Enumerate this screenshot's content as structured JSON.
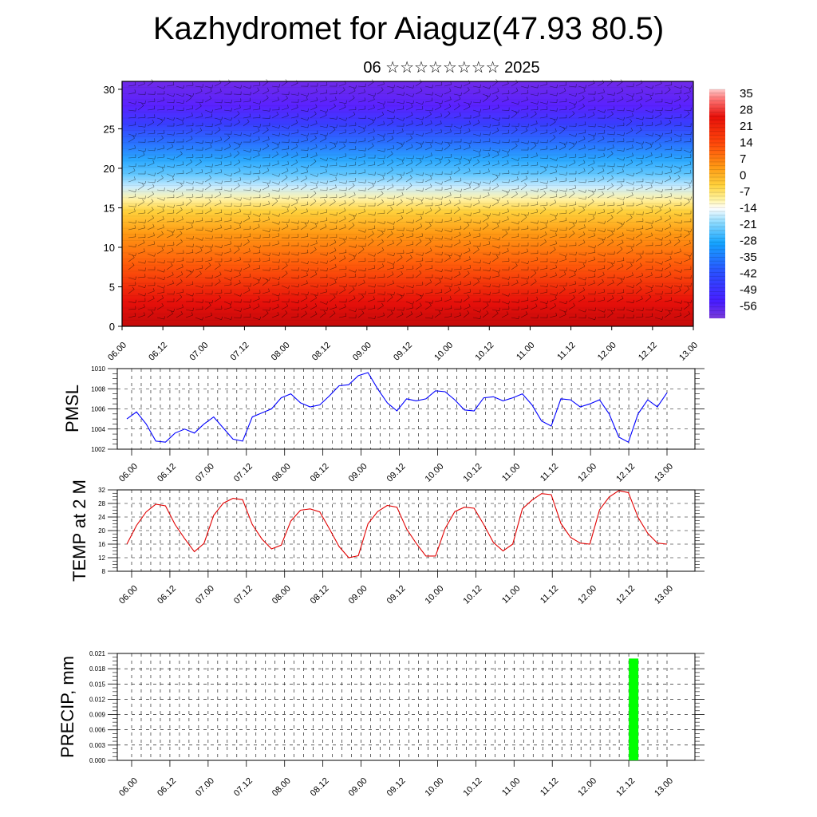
{
  "header": {
    "title": "Kazhydromet for Aiaguz(47.93 80.5)",
    "subtitle": "06 ☆☆☆☆☆☆☆☆ 2025"
  },
  "chart_data": [
    {
      "type": "heatmap",
      "title": "",
      "y_ticks": [
        "0",
        "5",
        "10",
        "15",
        "20",
        "25",
        "30"
      ],
      "ylim": [
        0,
        31
      ],
      "x_ticks": [
        "06.00",
        "06.12",
        "07.00",
        "07.12",
        "08.00",
        "08.12",
        "09.00",
        "09.12",
        "10.00",
        "10.12",
        "11.00",
        "11.12",
        "12.00",
        "12.12",
        "13.00"
      ],
      "colorbar_labels": [
        "35",
        "28",
        "21",
        "14",
        "7",
        "0",
        "-7",
        "-14",
        "-21",
        "-28",
        "-35",
        "-42",
        "-49",
        "-56"
      ],
      "overlay": "wind barbs",
      "colors": {
        "warm": "#e8100a",
        "mid": "#ffd23c",
        "cool": "#2aa8ff",
        "cold": "#4a1cff"
      }
    },
    {
      "type": "line",
      "ylabel": "PMSL",
      "ylim": [
        1002,
        1010
      ],
      "y_ticks": [
        "1002",
        "1004",
        "1006",
        "1008",
        "1010"
      ],
      "x_ticks": [
        "06.00",
        "06.12",
        "07.00",
        "07.12",
        "08.00",
        "08.12",
        "09.00",
        "09.12",
        "10.00",
        "10.12",
        "11.00",
        "11.12",
        "12.00",
        "12.12",
        "13.00"
      ],
      "series": [
        {
          "color": "#0000ff",
          "values": [
            1005.0,
            1005.7,
            1004.5,
            1002.8,
            1002.7,
            1003.6,
            1004.0,
            1003.6,
            1004.5,
            1005.2,
            1004.1,
            1003.0,
            1002.8,
            1005.2,
            1005.6,
            1006.0,
            1007.1,
            1007.5,
            1006.6,
            1006.2,
            1006.4,
            1007.3,
            1008.3,
            1008.4,
            1009.3,
            1009.6,
            1008.0,
            1006.6,
            1005.8,
            1007.0,
            1006.8,
            1007.0,
            1007.8,
            1007.7,
            1006.9,
            1005.9,
            1005.8,
            1007.1,
            1007.2,
            1006.8,
            1007.1,
            1007.5,
            1006.4,
            1004.8,
            1004.3,
            1007.0,
            1006.9,
            1006.2,
            1006.5,
            1006.9,
            1005.5,
            1003.2,
            1002.7,
            1005.5,
            1006.9,
            1006.2,
            1007.6
          ]
        }
      ]
    },
    {
      "type": "line",
      "ylabel": "TEMP at 2 M",
      "ylim": [
        8,
        32
      ],
      "y_ticks": [
        "8",
        "12",
        "16",
        "20",
        "24",
        "28",
        "32"
      ],
      "x_ticks": [
        "06.00",
        "06.12",
        "07.00",
        "07.12",
        "08.00",
        "08.12",
        "09.00",
        "09.12",
        "10.00",
        "10.12",
        "11.00",
        "11.12",
        "12.00",
        "12.12",
        "13.00"
      ],
      "series": [
        {
          "color": "#e00000",
          "values": [
            16.0,
            21.5,
            25.5,
            27.8,
            27.3,
            21.8,
            17.6,
            13.8,
            16.2,
            24.5,
            28.1,
            29.5,
            29.1,
            21.8,
            17.5,
            14.6,
            15.7,
            22.8,
            26.0,
            26.4,
            25.5,
            20.5,
            15.3,
            12.0,
            12.6,
            22.0,
            25.6,
            27.4,
            26.9,
            20.5,
            16.2,
            12.5,
            12.5,
            20.6,
            25.6,
            26.9,
            26.6,
            21.8,
            16.5,
            14.0,
            16.0,
            26.4,
            29.0,
            30.9,
            30.6,
            22.1,
            18.0,
            16.3,
            16.0,
            26.1,
            29.9,
            31.8,
            31.2,
            23.9,
            19.2,
            16.3,
            16.0
          ]
        }
      ]
    },
    {
      "type": "bar",
      "ylabel": "PRECIP, mm",
      "ylim": [
        0,
        0.021
      ],
      "y_ticks": [
        "0.000",
        "0.003",
        "0.006",
        "0.009",
        "0.012",
        "0.015",
        "0.018",
        "0.021"
      ],
      "x_ticks": [
        "06.00",
        "06.12",
        "07.00",
        "07.12",
        "08.00",
        "08.12",
        "09.00",
        "09.12",
        "10.00",
        "10.12",
        "11.00",
        "11.12",
        "12.00",
        "12.12",
        "13.00"
      ],
      "bars": [
        {
          "x_index": 52.5,
          "value": 0.02
        }
      ],
      "colors": {
        "bar": "#00ff00"
      }
    }
  ]
}
